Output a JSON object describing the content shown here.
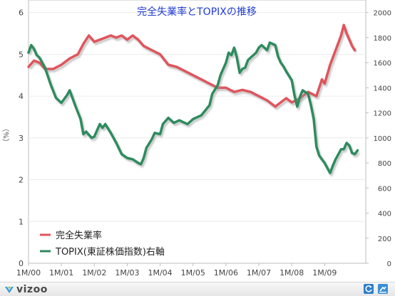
{
  "chart_data": {
    "type": "line",
    "title": "完全失業率とTOPIXの推移",
    "ylabel_left": "（%）",
    "y_left_ticks": [
      "0",
      "1",
      "2",
      "3",
      "4",
      "5",
      "6"
    ],
    "y_right_ticks": [
      "0",
      "200",
      "400",
      "600",
      "800",
      "1000",
      "1200",
      "1400",
      "1600",
      "1800",
      "2000"
    ],
    "x_ticks": [
      "1M/00",
      "1M/01",
      "1M/02",
      "1M/03",
      "1M/04",
      "1M/05",
      "1M/06",
      "1M/07",
      "1M/08",
      "1M/09"
    ],
    "ylim_left": [
      0,
      6.3
    ],
    "ylim_right": [
      0,
      2100
    ],
    "x_range": [
      2000.0,
      2010.25
    ],
    "grid": true,
    "legend_position": "bottom-left",
    "series": [
      {
        "name": "完全失業率",
        "axis": "left",
        "color": "#e0545c",
        "points": [
          [
            2000.0,
            4.7
          ],
          [
            2000.167,
            4.85
          ],
          [
            2000.333,
            4.8
          ],
          [
            2000.5,
            4.65
          ],
          [
            2000.75,
            4.65
          ],
          [
            2001.0,
            4.75
          ],
          [
            2001.25,
            4.9
          ],
          [
            2001.5,
            5.0
          ],
          [
            2001.667,
            5.25
          ],
          [
            2001.833,
            5.45
          ],
          [
            2002.0,
            5.3
          ],
          [
            2002.167,
            5.35
          ],
          [
            2002.333,
            5.4
          ],
          [
            2002.5,
            5.45
          ],
          [
            2002.667,
            5.4
          ],
          [
            2002.833,
            5.45
          ],
          [
            2003.0,
            5.35
          ],
          [
            2003.167,
            5.45
          ],
          [
            2003.333,
            5.35
          ],
          [
            2003.5,
            5.2
          ],
          [
            2003.75,
            5.1
          ],
          [
            2004.0,
            5.0
          ],
          [
            2004.25,
            4.75
          ],
          [
            2004.5,
            4.7
          ],
          [
            2004.75,
            4.6
          ],
          [
            2005.0,
            4.5
          ],
          [
            2005.25,
            4.4
          ],
          [
            2005.5,
            4.3
          ],
          [
            2005.75,
            4.2
          ],
          [
            2006.0,
            4.2
          ],
          [
            2006.25,
            4.1
          ],
          [
            2006.5,
            4.15
          ],
          [
            2006.75,
            4.1
          ],
          [
            2007.0,
            4.0
          ],
          [
            2007.25,
            3.9
          ],
          [
            2007.5,
            3.75
          ],
          [
            2007.667,
            3.85
          ],
          [
            2007.833,
            3.95
          ],
          [
            2008.0,
            3.85
          ],
          [
            2008.25,
            3.95
          ],
          [
            2008.5,
            4.1
          ],
          [
            2008.75,
            4.0
          ],
          [
            2008.917,
            4.4
          ],
          [
            2009.0,
            4.3
          ],
          [
            2009.167,
            4.75
          ],
          [
            2009.333,
            5.1
          ],
          [
            2009.5,
            5.45
          ],
          [
            2009.583,
            5.7
          ],
          [
            2009.667,
            5.5
          ],
          [
            2009.833,
            5.2
          ],
          [
            2009.917,
            5.1
          ]
        ]
      },
      {
        "name": "TOPIX(東証株価指数)右軸",
        "axis": "right",
        "color": "#2e8b5e",
        "points": [
          [
            2000.0,
            1680
          ],
          [
            2000.083,
            1740
          ],
          [
            2000.167,
            1710
          ],
          [
            2000.25,
            1660
          ],
          [
            2000.333,
            1640
          ],
          [
            2000.5,
            1560
          ],
          [
            2000.667,
            1430
          ],
          [
            2000.833,
            1320
          ],
          [
            2001.0,
            1280
          ],
          [
            2001.167,
            1340
          ],
          [
            2001.25,
            1380
          ],
          [
            2001.417,
            1260
          ],
          [
            2001.583,
            1150
          ],
          [
            2001.667,
            1030
          ],
          [
            2001.75,
            1050
          ],
          [
            2001.917,
            1000
          ],
          [
            2002.0,
            1010
          ],
          [
            2002.083,
            1060
          ],
          [
            2002.167,
            1110
          ],
          [
            2002.25,
            1080
          ],
          [
            2002.333,
            1110
          ],
          [
            2002.5,
            1040
          ],
          [
            2002.667,
            960
          ],
          [
            2002.833,
            870
          ],
          [
            2003.0,
            840
          ],
          [
            2003.167,
            830
          ],
          [
            2003.333,
            800
          ],
          [
            2003.417,
            790
          ],
          [
            2003.5,
            840
          ],
          [
            2003.583,
            920
          ],
          [
            2003.75,
            990
          ],
          [
            2003.833,
            1040
          ],
          [
            2004.0,
            1030
          ],
          [
            2004.083,
            1110
          ],
          [
            2004.25,
            1160
          ],
          [
            2004.417,
            1120
          ],
          [
            2004.583,
            1140
          ],
          [
            2004.75,
            1120
          ],
          [
            2004.833,
            1110
          ],
          [
            2005.0,
            1150
          ],
          [
            2005.25,
            1180
          ],
          [
            2005.5,
            1260
          ],
          [
            2005.583,
            1350
          ],
          [
            2005.75,
            1420
          ],
          [
            2005.833,
            1500
          ],
          [
            2006.0,
            1600
          ],
          [
            2006.083,
            1680
          ],
          [
            2006.167,
            1660
          ],
          [
            2006.25,
            1720
          ],
          [
            2006.333,
            1640
          ],
          [
            2006.417,
            1520
          ],
          [
            2006.5,
            1550
          ],
          [
            2006.583,
            1560
          ],
          [
            2006.667,
            1620
          ],
          [
            2006.75,
            1640
          ],
          [
            2006.917,
            1680
          ],
          [
            2007.0,
            1720
          ],
          [
            2007.083,
            1740
          ],
          [
            2007.25,
            1700
          ],
          [
            2007.333,
            1760
          ],
          [
            2007.5,
            1740
          ],
          [
            2007.583,
            1650
          ],
          [
            2007.667,
            1600
          ],
          [
            2007.75,
            1570
          ],
          [
            2007.833,
            1530
          ],
          [
            2008.0,
            1460
          ],
          [
            2008.083,
            1340
          ],
          [
            2008.167,
            1250
          ],
          [
            2008.25,
            1330
          ],
          [
            2008.333,
            1380
          ],
          [
            2008.5,
            1350
          ],
          [
            2008.583,
            1260
          ],
          [
            2008.667,
            1150
          ],
          [
            2008.75,
            930
          ],
          [
            2008.833,
            860
          ],
          [
            2008.917,
            830
          ],
          [
            2009.0,
            800
          ],
          [
            2009.083,
            760
          ],
          [
            2009.167,
            720
          ],
          [
            2009.25,
            780
          ],
          [
            2009.333,
            830
          ],
          [
            2009.417,
            870
          ],
          [
            2009.5,
            910
          ],
          [
            2009.583,
            910
          ],
          [
            2009.667,
            960
          ],
          [
            2009.75,
            940
          ],
          [
            2009.833,
            880
          ],
          [
            2009.917,
            870
          ],
          [
            2010.0,
            900
          ]
        ]
      }
    ]
  },
  "brand": {
    "name": "vizoo",
    "icons": [
      "refresh-icon",
      "share-icon"
    ]
  }
}
